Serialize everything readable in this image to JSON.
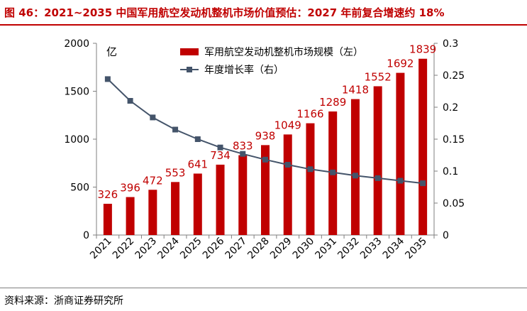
{
  "header": {
    "title": "图 46：2021~2035 中国军用航空发动机整机市场价值预估：2027 年前复合增速约 18%"
  },
  "source": {
    "label": "资料来源：",
    "name": "浙商证券研究所"
  },
  "colors": {
    "bar": "#c00000",
    "line": "#44546a",
    "title": "#c00000",
    "axis": "#7f7f7f"
  },
  "chart_data": {
    "type": "bar",
    "categories": [
      "2021",
      "2022",
      "2023",
      "2024",
      "2025",
      "2026",
      "2027",
      "2028",
      "2029",
      "2030",
      "2031",
      "2032",
      "2033",
      "2034",
      "2035"
    ],
    "series": [
      {
        "name": "军用航空发动机整机市场规模（左）",
        "type": "bar",
        "axis": "left",
        "values": [
          326,
          396,
          472,
          553,
          641,
          734,
          833,
          938,
          1049,
          1166,
          1289,
          1418,
          1552,
          1692,
          1839
        ]
      },
      {
        "name": "年度增长率（右）",
        "type": "line",
        "axis": "right",
        "values": [
          0.244,
          0.21,
          0.184,
          0.165,
          0.15,
          0.137,
          0.127,
          0.118,
          0.11,
          0.103,
          0.098,
          0.093,
          0.089,
          0.085,
          0.081
        ]
      }
    ],
    "left_axis": {
      "unit": "亿",
      "ylim": [
        0,
        2000
      ],
      "ticks": [
        0,
        500,
        1000,
        1500,
        2000
      ]
    },
    "right_axis": {
      "ylim": [
        0,
        0.3
      ],
      "ticks": [
        0,
        0.05,
        0.1,
        0.15,
        0.2,
        0.25,
        0.3
      ]
    },
    "legend_position": "top-center",
    "grid": false
  }
}
